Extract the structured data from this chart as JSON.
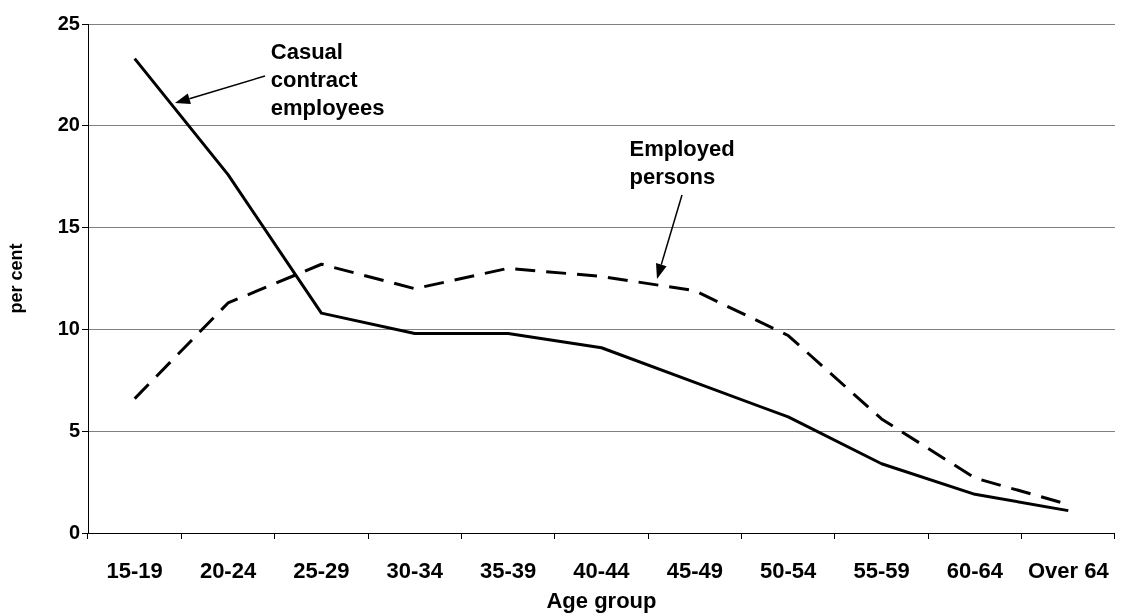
{
  "chart_data": {
    "type": "line",
    "xlabel": "Age group",
    "ylabel": "per cent",
    "categories": [
      "15-19",
      "20-24",
      "25-29",
      "30-34",
      "35-39",
      "40-44",
      "45-49",
      "50-54",
      "55-59",
      "60-64",
      "Over 64"
    ],
    "series": [
      {
        "name": "Casual contract employees",
        "color": "#000000",
        "line_style": "solid",
        "values": [
          23.3,
          17.6,
          10.8,
          9.8,
          9.8,
          9.1,
          7.4,
          5.7,
          3.4,
          1.9,
          1.1
        ]
      },
      {
        "name": "Employed persons",
        "color": "#000000",
        "line_style": "dashed",
        "values": [
          6.6,
          11.3,
          13.2,
          12.0,
          13.0,
          12.6,
          11.9,
          9.7,
          5.6,
          2.7,
          1.4
        ]
      }
    ],
    "ylim": [
      0,
      25
    ],
    "yticks": [
      0,
      5,
      10,
      15,
      20,
      25
    ],
    "grid": "y",
    "marker": "none"
  }
}
